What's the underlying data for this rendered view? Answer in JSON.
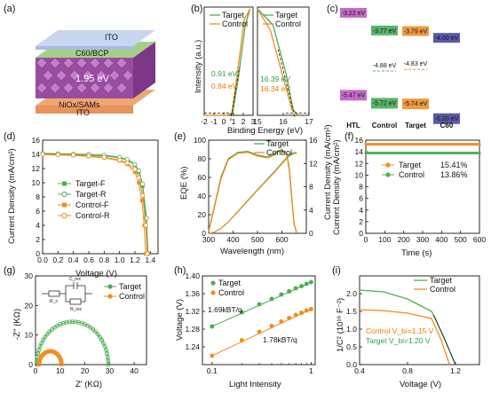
{
  "colors": {
    "target": "#4caf50",
    "control": "#f28c1e",
    "hi": "#2aa44a",
    "orange": "#f07a00",
    "htl": "#c46bc7",
    "ctrlbar": "#58b467",
    "tgtbar": "#f09a3e",
    "c60bar": "#5a5aa8"
  },
  "panel_labels": {
    "a": "(a)",
    "b": "(b)",
    "c": "(c)",
    "d": "(d)",
    "e": "(e)",
    "f": "(f)",
    "g": "(g)",
    "h": "(h)",
    "i": "(i)"
  },
  "panel_a": {
    "ito_top": "ITO",
    "c60": "C60/BCP",
    "bandgap": "1.95 eV",
    "nio": "NiOx/SAMs",
    "ito_bot": "ITO"
  },
  "chart_data": [
    {
      "panel": "b",
      "type": "line",
      "xlabel": "Binding Energy (eV)",
      "ylabel": "Intensity (a.u.)",
      "left": {
        "xlim": [
          -2,
          3
        ],
        "xticks": [
          "-2",
          "-1",
          "0",
          "1",
          "2",
          "3"
        ],
        "series": [
          {
            "name": "Target",
            "x": [
              -2,
              0.4,
              0.91,
              1.5,
              2.2,
              2.7
            ],
            "y": [
              0,
              0,
              0.02,
              0.35,
              0.85,
              1.0
            ]
          },
          {
            "name": "Control",
            "x": [
              -2,
              0.3,
              0.84,
              1.4,
              2.1,
              2.7
            ],
            "y": [
              0,
              0,
              0.02,
              0.4,
              0.9,
              1.0
            ]
          }
        ],
        "annotations": [
          "0.91 eV",
          "0.84 eV"
        ]
      },
      "right": {
        "xlim": [
          15,
          17
        ],
        "xticks": [
          "15",
          "16",
          "17"
        ],
        "series": [
          {
            "name": "Target",
            "x": [
              15,
              15.6,
              16.1,
              16.39,
              16.6
            ],
            "y": [
              1.0,
              0.85,
              0.4,
              0.05,
              0.0
            ]
          },
          {
            "name": "Control",
            "x": [
              15,
              15.5,
              16.0,
              16.34,
              16.6
            ],
            "y": [
              1.0,
              0.8,
              0.35,
              0.05,
              0.0
            ]
          }
        ],
        "annotations": [
          "16.39 eV",
          "16.34 eV"
        ]
      }
    },
    {
      "panel": "c",
      "type": "bar",
      "categories": [
        "HTL",
        "Control",
        "Target",
        "C60"
      ],
      "cbm": [
        "-3.22 eV",
        "-3.77 eV",
        "-3.79 eV",
        "-4.00 eV"
      ],
      "vbm": [
        "-5.47 eV",
        "-5.72 eV",
        "-5.74 eV",
        "-6.20 eV"
      ],
      "fermi": [
        "-4.88 eV",
        "-4.83 eV"
      ],
      "cbm_values": [
        -3.22,
        -3.77,
        -3.79,
        -4.0
      ],
      "vbm_values": [
        -5.47,
        -5.72,
        -5.74,
        -6.2
      ]
    },
    {
      "panel": "d",
      "type": "line",
      "xlabel": "Voltage (V)",
      "ylabel": "Current Density (mA/cm²)",
      "xlim": [
        0,
        1.5
      ],
      "ylim": [
        0,
        16
      ],
      "xticks": [
        "0.0",
        "0.2",
        "0.4",
        "0.6",
        "0.8",
        "1.0",
        "1.2",
        "1.4"
      ],
      "yticks": [
        "0",
        "2",
        "4",
        "6",
        "8",
        "10",
        "12",
        "14",
        "16"
      ],
      "series": [
        {
          "name": "Target-F",
          "x": [
            0,
            0.2,
            0.4,
            0.6,
            0.8,
            1.0,
            1.1,
            1.2,
            1.25,
            1.3,
            1.34,
            1.36
          ],
          "y": [
            14.1,
            14.05,
            14.0,
            13.9,
            13.8,
            13.5,
            13.2,
            12.5,
            11.5,
            9.5,
            5,
            0
          ]
        },
        {
          "name": "Target-R",
          "x": [
            0,
            0.2,
            0.4,
            0.6,
            0.8,
            1.0,
            1.1,
            1.2,
            1.25,
            1.3,
            1.35,
            1.37
          ],
          "y": [
            14.15,
            14.1,
            14.05,
            14.0,
            13.9,
            13.6,
            13.3,
            12.6,
            11.7,
            9.8,
            5,
            0
          ]
        },
        {
          "name": "Control-F",
          "x": [
            0,
            0.2,
            0.4,
            0.6,
            0.8,
            1.0,
            1.1,
            1.2,
            1.25,
            1.29,
            1.32,
            1.34
          ],
          "y": [
            13.95,
            13.9,
            13.85,
            13.7,
            13.5,
            13.1,
            12.6,
            11.5,
            10,
            7.5,
            4,
            0
          ]
        },
        {
          "name": "Control-R",
          "x": [
            0,
            0.2,
            0.4,
            0.6,
            0.8,
            1.0,
            1.1,
            1.2,
            1.25,
            1.3,
            1.34,
            1.36
          ],
          "y": [
            14.0,
            13.95,
            13.9,
            13.8,
            13.6,
            13.2,
            12.8,
            11.9,
            10.7,
            8.2,
            4,
            0
          ]
        }
      ]
    },
    {
      "panel": "e",
      "type": "line",
      "xlabel": "Wavelength (nm)",
      "ylabel": "EQE (%)",
      "ylabel2": "Current Density (mA/cm²)",
      "xlim": [
        300,
        700
      ],
      "ylim": [
        0,
        100
      ],
      "y2lim": [
        0,
        16
      ],
      "xticks": [
        "300",
        "400",
        "500",
        "600"
      ],
      "yticks": [
        "0",
        "20",
        "40",
        "60",
        "80",
        "100"
      ],
      "y2ticks": [
        "0",
        "4",
        "8",
        "12",
        "16"
      ],
      "series": [
        {
          "name": "Target",
          "x": [
            300,
            320,
            350,
            380,
            420,
            460,
            500,
            540,
            560,
            580,
            600,
            620,
            630,
            640,
            650,
            660
          ],
          "y": [
            2,
            25,
            60,
            80,
            87,
            88,
            84,
            82,
            84,
            88,
            90,
            85,
            70,
            40,
            10,
            1
          ]
        },
        {
          "name": "Control",
          "x": [
            300,
            320,
            350,
            380,
            420,
            460,
            500,
            540,
            560,
            580,
            600,
            620,
            630,
            640,
            650,
            660
          ],
          "y": [
            2,
            24,
            58,
            79,
            86,
            87,
            83,
            81,
            83,
            87,
            89,
            84,
            68,
            38,
            9,
            1
          ]
        }
      ]
    },
    {
      "panel": "f",
      "type": "line",
      "xlabel": "Time (s)",
      "ylabel": "Current Density (mA/cm²)",
      "xlim": [
        0,
        600
      ],
      "ylim": [
        0,
        16
      ],
      "xticks": [
        "0",
        "100",
        "200",
        "300",
        "400",
        "500",
        "600"
      ],
      "yticks": [
        "0",
        "2",
        "4",
        "6",
        "8",
        "10",
        "12",
        "14",
        "16"
      ],
      "series": [
        {
          "name": "Target",
          "label": "15.41%",
          "value": 15.3
        },
        {
          "name": "Control",
          "label": "13.86%",
          "value": 13.8
        }
      ]
    },
    {
      "panel": "g",
      "type": "scatter",
      "xlabel": "Z' (KΩ)",
      "ylabel": "-Z'' (KΩ)",
      "xlim": [
        0,
        45
      ],
      "ylim": [
        0,
        30
      ],
      "xticks": [
        "0",
        "10",
        "20",
        "30",
        "40"
      ],
      "yticks": [
        "0",
        "10",
        "20",
        "30"
      ],
      "series": [
        {
          "name": "Target",
          "center": 15,
          "radius": 14.5
        },
        {
          "name": "Control",
          "center": 6,
          "radius": 4.5
        }
      ],
      "circuit": {
        "cap": "C_rec",
        "r1": "R_s",
        "r2": "R_rec"
      }
    },
    {
      "panel": "h",
      "type": "scatter",
      "xlabel": "Light Intensity",
      "ylabel": "Voltage (V)",
      "xscale": "log",
      "xlim": [
        0.08,
        1.1
      ],
      "ylim": [
        1.2,
        1.4
      ],
      "xticks": [
        "0.1",
        "1"
      ],
      "yticks": [
        "1.24",
        "1.28",
        "1.32",
        "1.36",
        "1.40"
      ],
      "series": [
        {
          "name": "Target",
          "x": [
            0.1,
            0.2,
            0.3,
            0.4,
            0.5,
            0.6,
            0.7,
            0.8,
            0.9,
            1.0
          ],
          "y": [
            1.286,
            1.318,
            1.336,
            1.348,
            1.358,
            1.365,
            1.372,
            1.377,
            1.382,
            1.386
          ]
        },
        {
          "name": "Control",
          "x": [
            0.1,
            0.2,
            0.3,
            0.4,
            0.5,
            0.6,
            0.7,
            0.8,
            0.9,
            1.0
          ],
          "y": [
            1.22,
            1.255,
            1.274,
            1.287,
            1.297,
            1.305,
            1.312,
            1.317,
            1.322,
            1.325
          ]
        }
      ],
      "annotations": [
        "1.69kBT/q",
        "1.78kBT/q"
      ]
    },
    {
      "panel": "i",
      "type": "line",
      "xlabel": "Voltage (V)",
      "ylabel": "1/C² (10¹⁶ F⁻²)",
      "xlim": [
        0.4,
        1.4
      ],
      "ylim": [
        0,
        2.5
      ],
      "xticks": [
        "0.4",
        "0.8",
        "1.2"
      ],
      "yticks": [
        "0.0",
        "0.5",
        "1.0",
        "1.5",
        "2.0"
      ],
      "series": [
        {
          "name": "Target",
          "x": [
            0.4,
            0.6,
            0.8,
            1.0,
            1.1,
            1.2
          ],
          "y": [
            2.1,
            2.05,
            1.85,
            1.5,
            0.8,
            0.0
          ]
        },
        {
          "name": "Control",
          "x": [
            0.4,
            0.6,
            0.8,
            1.0,
            1.08,
            1.15
          ],
          "y": [
            1.55,
            1.52,
            1.45,
            1.3,
            0.7,
            0.0
          ]
        }
      ],
      "annotations": [
        "Control V_bi=1.15 V",
        "Target V_bi=1.20 V"
      ]
    }
  ],
  "legend": {
    "target": "Target",
    "control": "Control",
    "tf": "Target-F",
    "tr": "Target-R",
    "cf": "Control-F",
    "cr": "Control-R"
  }
}
